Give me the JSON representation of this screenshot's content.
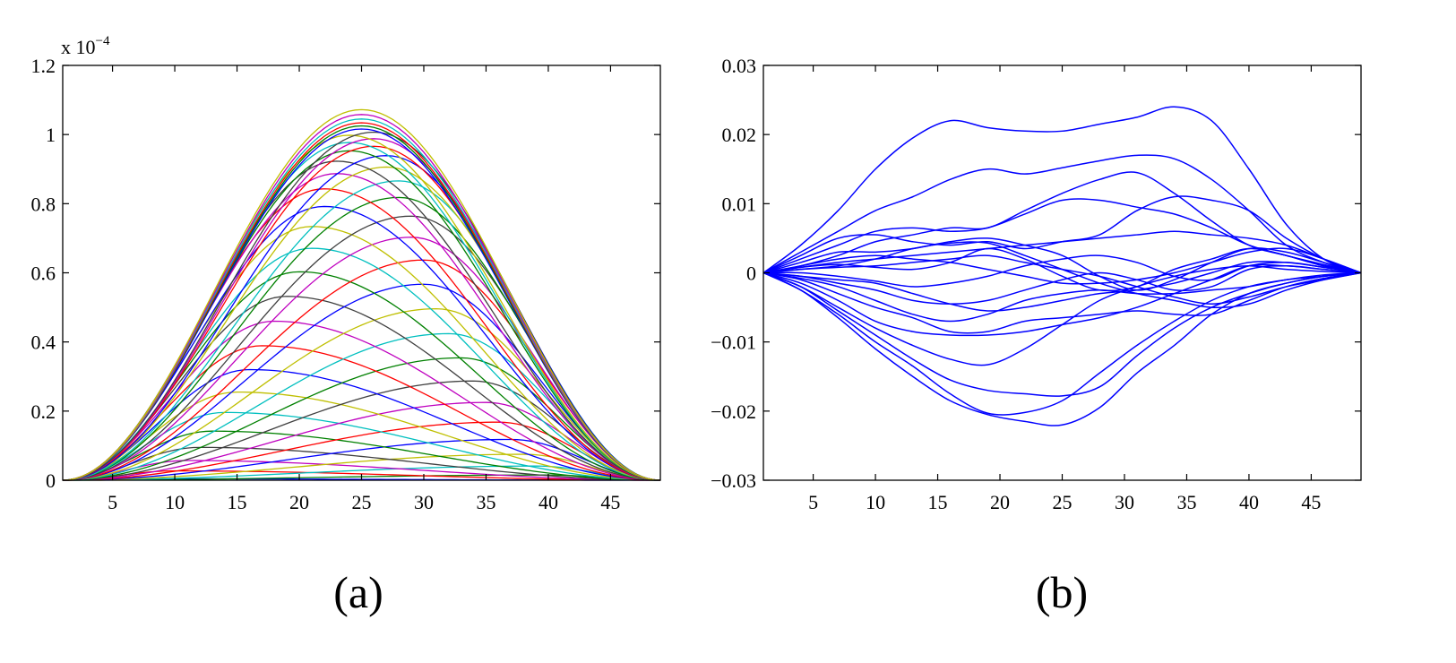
{
  "chart_data": [
    {
      "type": "line",
      "panel_label": "(a)",
      "y_multiplier": "x 10",
      "y_exponent": "−4",
      "x_ticks": [
        "5",
        "10",
        "15",
        "20",
        "25",
        "30",
        "35",
        "40",
        "45"
      ],
      "x_tick_values": [
        5,
        10,
        15,
        20,
        25,
        30,
        35,
        40,
        45
      ],
      "y_ticks": [
        "0",
        "0.2",
        "0.4",
        "0.6",
        "0.8",
        "1",
        "1.2"
      ],
      "y_tick_values": [
        0,
        0.2,
        0.4,
        0.6,
        0.8,
        1.0,
        1.2
      ],
      "xlim": [
        1,
        49
      ],
      "ylim": [
        0,
        1.2
      ],
      "grid": false,
      "series_count": 48,
      "envelope_peak": 1.08,
      "peak_x": 25,
      "series_peak_heights": [
        0.004,
        0.015,
        0.027,
        0.041,
        0.057,
        0.075,
        0.095,
        0.118,
        0.142,
        0.168,
        0.196,
        0.225,
        0.255,
        0.287,
        0.32,
        0.354,
        0.389,
        0.424,
        0.46,
        0.496,
        0.532,
        0.567,
        0.603,
        0.637,
        0.671,
        0.703,
        0.734,
        0.764,
        0.792,
        0.818,
        0.843,
        0.866,
        0.887,
        0.906,
        0.923,
        0.939,
        0.953,
        0.966,
        0.977,
        0.988,
        0.998,
        1.007,
        1.016,
        1.025,
        1.034,
        1.045,
        1.058,
        1.072
      ],
      "series_peak_x": [
        9,
        40,
        10,
        39,
        11,
        38,
        12,
        37,
        13,
        36,
        14,
        35,
        15,
        34,
        16,
        33,
        17,
        32,
        18,
        31,
        19,
        30,
        20,
        30,
        21,
        29,
        21,
        29,
        22,
        28,
        22,
        28,
        23,
        27,
        23,
        27,
        24,
        26,
        24,
        26,
        24,
        26,
        25,
        25,
        25,
        25,
        25,
        25
      ],
      "colors": [
        "#0000ff",
        "#008000",
        "#ff0000",
        "#00bfbf",
        "#bf00bf",
        "#bfbf00",
        "#404040"
      ]
    },
    {
      "type": "line",
      "panel_label": "(b)",
      "x_ticks": [
        "5",
        "10",
        "15",
        "20",
        "25",
        "30",
        "35",
        "40",
        "45"
      ],
      "x_tick_values": [
        5,
        10,
        15,
        20,
        25,
        30,
        35,
        40,
        45
      ],
      "y_ticks": [
        "−0.03",
        "−0.02",
        "−0.01",
        "0",
        "0.01",
        "0.02",
        "0.03"
      ],
      "y_tick_values": [
        -0.03,
        -0.02,
        -0.01,
        0,
        0.01,
        0.02,
        0.03
      ],
      "xlim": [
        1,
        49
      ],
      "ylim": [
        -0.03,
        0.03
      ],
      "grid": false,
      "line_color": "#0000ff",
      "x": [
        1,
        4,
        7,
        10,
        13,
        16,
        19,
        22,
        25,
        28,
        31,
        34,
        37,
        40,
        43,
        46,
        49
      ],
      "series": [
        {
          "values": [
            0,
            0.004,
            0.009,
            0.015,
            0.0195,
            0.022,
            0.021,
            0.0205,
            0.0205,
            0.0215,
            0.0225,
            0.024,
            0.022,
            0.015,
            0.007,
            0.002,
            0
          ]
        },
        {
          "values": [
            0,
            0.003,
            0.006,
            0.009,
            0.011,
            0.0135,
            0.015,
            0.0143,
            0.0152,
            0.0162,
            0.017,
            0.0165,
            0.0135,
            0.009,
            0.004,
            0.0015,
            0
          ]
        },
        {
          "values": [
            0,
            0.002,
            0.004,
            0.006,
            0.0065,
            0.006,
            0.0065,
            0.0085,
            0.0105,
            0.0105,
            0.0095,
            0.0085,
            0.0065,
            0.004,
            0.0025,
            0.001,
            0
          ]
        },
        {
          "values": [
            0,
            0.001,
            0.0025,
            0.0045,
            0.0055,
            0.0065,
            0.0065,
            0.009,
            0.0115,
            0.0135,
            0.0145,
            0.0115,
            0.0075,
            0.004,
            0.0025,
            0.0012,
            0
          ]
        },
        {
          "values": [
            0,
            0.0025,
            0.005,
            0.0055,
            0.0045,
            0.004,
            0.0045,
            0.0035,
            0.0045,
            0.0055,
            0.009,
            0.011,
            0.0105,
            0.009,
            0.005,
            0.002,
            0
          ]
        },
        {
          "values": [
            0,
            0.0015,
            0.003,
            0.003,
            0.0035,
            0.0045,
            0.005,
            0.004,
            0.0025,
            -0.0005,
            -0.0025,
            -0.001,
            0.0015,
            0.0035,
            0.003,
            0.0015,
            0
          ]
        },
        {
          "values": [
            0,
            0.0005,
            0.001,
            0.002,
            0.0035,
            0.0043,
            0.0043,
            0.0025,
            0.0005,
            -0.0015,
            -0.003,
            -0.004,
            -0.005,
            -0.0045,
            -0.0025,
            -0.001,
            0
          ]
        },
        {
          "values": [
            0,
            0.0008,
            0.0012,
            0.0008,
            0.0005,
            0.0015,
            0.0035,
            0.002,
            -0.0005,
            -0.0025,
            -0.002,
            0.0005,
            0.002,
            0.0035,
            0.0025,
            0.001,
            0
          ]
        },
        {
          "values": [
            0,
            0,
            -0.0005,
            -0.0012,
            -0.002,
            -0.0015,
            -0.0005,
            0.001,
            0.002,
            0.0025,
            0.0015,
            -0.0005,
            -0.001,
            0.001,
            0.0015,
            0.0008,
            0
          ]
        },
        {
          "values": [
            0,
            -0.0005,
            -0.0015,
            -0.0025,
            -0.004,
            -0.0045,
            -0.004,
            -0.0025,
            -0.001,
            0,
            -0.001,
            -0.0025,
            -0.002,
            0.0005,
            0.001,
            0.0005,
            0
          ]
        },
        {
          "values": [
            0,
            -0.0008,
            -0.002,
            -0.004,
            -0.006,
            -0.007,
            -0.006,
            -0.004,
            -0.003,
            -0.0025,
            -0.003,
            -0.003,
            -0.0025,
            -0.002,
            -0.001,
            -0.0005,
            0
          ]
        },
        {
          "values": [
            0,
            -0.001,
            -0.003,
            -0.005,
            -0.0065,
            -0.0085,
            -0.0085,
            -0.007,
            -0.0065,
            -0.006,
            -0.0055,
            -0.006,
            -0.006,
            -0.004,
            -0.002,
            -0.0008,
            0
          ]
        },
        {
          "values": [
            0,
            -0.0015,
            -0.004,
            -0.007,
            -0.0085,
            -0.009,
            -0.009,
            -0.0085,
            -0.0075,
            -0.0065,
            -0.005,
            -0.003,
            -0.001,
            0.001,
            0.001,
            0.0005,
            0
          ]
        },
        {
          "values": [
            0,
            -0.002,
            -0.005,
            -0.008,
            -0.0105,
            -0.0125,
            -0.0133,
            -0.011,
            -0.0075,
            -0.004,
            -0.002,
            -0.0005,
            0.0005,
            0.001,
            0.0005,
            0.0002,
            0
          ]
        },
        {
          "values": [
            0,
            -0.002,
            -0.0055,
            -0.009,
            -0.0125,
            -0.0155,
            -0.017,
            -0.0175,
            -0.0178,
            -0.0165,
            -0.012,
            -0.008,
            -0.005,
            -0.003,
            -0.0015,
            -0.0005,
            0
          ]
        },
        {
          "values": [
            0,
            -0.0025,
            -0.006,
            -0.01,
            -0.0135,
            -0.0175,
            -0.0203,
            -0.0202,
            -0.0185,
            -0.0145,
            -0.0105,
            -0.007,
            -0.004,
            -0.002,
            -0.001,
            -0.0003,
            0
          ]
        },
        {
          "values": [
            0,
            -0.0025,
            -0.0065,
            -0.011,
            -0.015,
            -0.0185,
            -0.0205,
            -0.0215,
            -0.022,
            -0.0195,
            -0.0145,
            -0.0105,
            -0.006,
            -0.003,
            -0.0015,
            -0.0005,
            0
          ]
        },
        {
          "values": [
            0,
            0.0008,
            0.0015,
            0.002,
            0.0025,
            0.003,
            0.0035,
            0.004,
            0.0045,
            0.005,
            0.0055,
            0.006,
            0.0055,
            0.005,
            0.004,
            0.002,
            0
          ]
        },
        {
          "values": [
            0,
            0.001,
            0.002,
            0.0025,
            0.002,
            0.0015,
            0.0005,
            -0.0005,
            -0.0015,
            -0.0015,
            -0.001,
            0,
            0.0015,
            0.003,
            0.0035,
            0.002,
            0
          ]
        },
        {
          "values": [
            0,
            -0.0005,
            -0.001,
            -0.0015,
            -0.003,
            -0.0045,
            -0.0055,
            -0.005,
            -0.004,
            -0.003,
            -0.0025,
            -0.0015,
            0,
            0.0015,
            0.0015,
            0.0008,
            0
          ]
        },
        {
          "values": [
            0,
            0.0005,
            0.0008,
            0.001,
            0.0015,
            0.002,
            0.0025,
            0.0015,
            0.0005,
            -0.0005,
            -0.002,
            -0.0035,
            -0.0045,
            -0.0035,
            -0.002,
            -0.001,
            0
          ]
        }
      ]
    }
  ]
}
